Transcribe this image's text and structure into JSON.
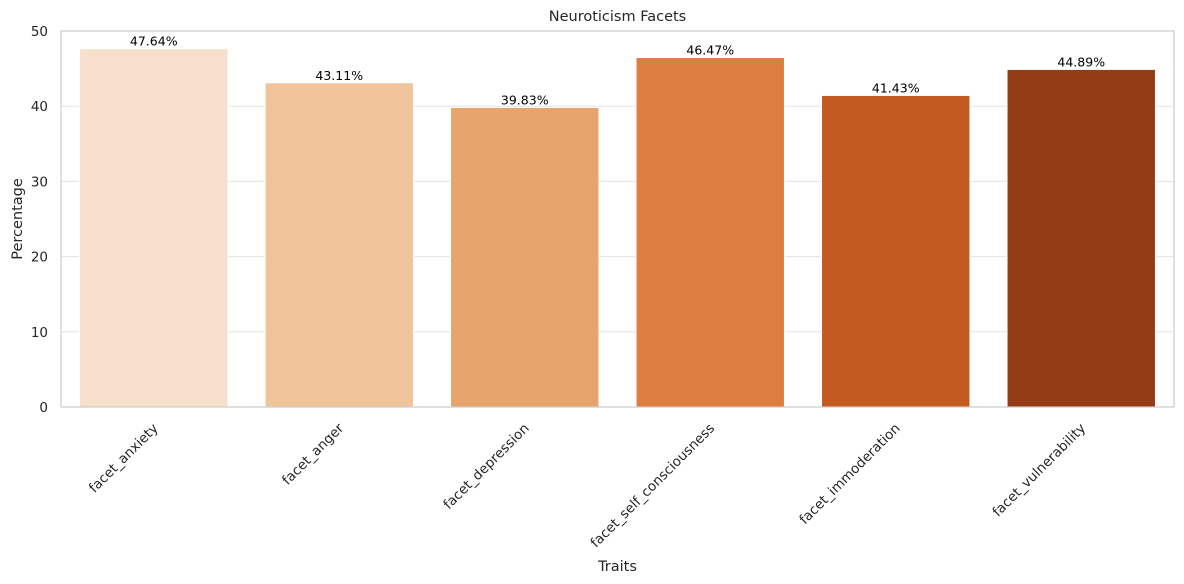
{
  "chart_data": {
    "type": "bar",
    "title": "Neuroticism Facets",
    "xlabel": "Traits",
    "ylabel": "Percentage",
    "categories": [
      "facet_anxiety",
      "facet_anger",
      "facet_depression",
      "facet_self_consciousness",
      "facet_immoderation",
      "facet_vulnerability"
    ],
    "values": [
      47.64,
      43.11,
      39.83,
      46.47,
      41.43,
      44.89
    ],
    "value_labels": [
      "47.64%",
      "43.11%",
      "39.83%",
      "46.47%",
      "41.43%",
      "44.89%"
    ],
    "colors": [
      "#f7e0cb",
      "#f0c49b",
      "#e7a46d",
      "#dc7e3f",
      "#c35a1f",
      "#943c16"
    ],
    "ylim": [
      0,
      50
    ],
    "yticks": [
      0,
      10,
      20,
      30,
      40,
      50
    ],
    "grid": true,
    "legend": "none"
  }
}
